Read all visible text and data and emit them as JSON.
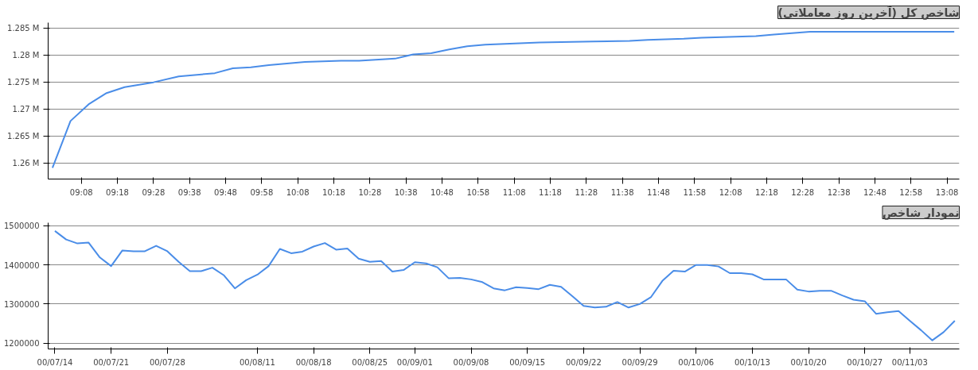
{
  "chart_data": [
    {
      "type": "line",
      "title": "شاخص کل (آخرین روز معاملاتی)",
      "x": [
        9.0,
        9.0833,
        9.1667,
        9.25,
        9.3333,
        9.4667,
        9.5833,
        9.75,
        9.8333,
        9.9167,
        10.0,
        10.1667,
        10.3333,
        10.4167,
        10.5833,
        10.6667,
        10.75,
        10.8333,
        10.9167,
        11.0,
        11.25,
        11.5,
        11.6667,
        11.75,
        11.9167,
        12.0,
        12.25,
        12.3333,
        12.5,
        13.1667
      ],
      "series": [
        {
          "color": "#4a8de8",
          "values": [
            1259100,
            1267800,
            1270900,
            1273000,
            1274100,
            1275000,
            1276100,
            1276700,
            1277600,
            1277800,
            1278200,
            1278800,
            1279000,
            1279000,
            1279400,
            1280200,
            1280400,
            1281100,
            1281700,
            1282000,
            1282400,
            1282600,
            1282700,
            1282900,
            1283100,
            1283300,
            1283600,
            1283900,
            1284400,
            1284400
          ]
        }
      ],
      "xlim": [
        8.98,
        13.19
      ],
      "xticks": [
        {
          "value": 9.1333,
          "label": "09:08"
        },
        {
          "value": 9.3,
          "label": "09:18"
        },
        {
          "value": 9.4667,
          "label": "09:28"
        },
        {
          "value": 9.6333,
          "label": "09:38"
        },
        {
          "value": 9.8,
          "label": "09:48"
        },
        {
          "value": 9.9667,
          "label": "09:58"
        },
        {
          "value": 10.1333,
          "label": "10:08"
        },
        {
          "value": 10.3,
          "label": "10:18"
        },
        {
          "value": 10.4667,
          "label": "10:28"
        },
        {
          "value": 10.6333,
          "label": "10:38"
        },
        {
          "value": 10.8,
          "label": "10:48"
        },
        {
          "value": 10.9667,
          "label": "10:58"
        },
        {
          "value": 11.1333,
          "label": "11:08"
        },
        {
          "value": 11.3,
          "label": "11:18"
        },
        {
          "value": 11.4667,
          "label": "11:28"
        },
        {
          "value": 11.6333,
          "label": "11:38"
        },
        {
          "value": 11.8,
          "label": "11:48"
        },
        {
          "value": 11.9667,
          "label": "11:58"
        },
        {
          "value": 12.1333,
          "label": "12:08"
        },
        {
          "value": 12.3,
          "label": "12:18"
        },
        {
          "value": 12.4667,
          "label": "12:28"
        },
        {
          "value": 12.6333,
          "label": "12:38"
        },
        {
          "value": 12.8,
          "label": "12:48"
        },
        {
          "value": 12.9667,
          "label": "12:58"
        },
        {
          "value": 13.1333,
          "label": "13:08"
        }
      ],
      "ylim": [
        1257000,
        1286100
      ],
      "yticks": [
        {
          "value": 1260000,
          "label": "1.26 M"
        },
        {
          "value": 1265000,
          "label": "1.265 M"
        },
        {
          "value": 1270000,
          "label": "1.27 M"
        },
        {
          "value": 1275000,
          "label": "1.275 M"
        },
        {
          "value": 1280000,
          "label": "1.28 M"
        },
        {
          "value": 1285000,
          "label": "1.285 M"
        }
      ],
      "grid": "y",
      "marker": "none",
      "line_style": "solid"
    },
    {
      "type": "line",
      "title": "نمودار شاخص",
      "categories": [
        "00/07/14",
        null,
        null,
        null,
        null,
        "00/07/21",
        null,
        null,
        null,
        null,
        "00/07/28",
        null,
        null,
        null,
        null,
        null,
        null,
        null,
        "00/08/11",
        null,
        null,
        null,
        null,
        "00/08/18",
        null,
        null,
        null,
        null,
        "00/08/25",
        null,
        null,
        null,
        "00/09/01",
        null,
        null,
        null,
        null,
        "00/09/08",
        null,
        null,
        null,
        null,
        "00/09/15",
        null,
        null,
        null,
        null,
        "00/09/22",
        null,
        null,
        null,
        null,
        "00/09/29",
        null,
        null,
        null,
        null,
        "00/10/06",
        null,
        null,
        null,
        null,
        "00/10/13",
        null,
        null,
        null,
        null,
        "00/10/20",
        null,
        null,
        null,
        null,
        "00/10/27",
        null,
        null,
        null,
        "00/11/03",
        null,
        null,
        null,
        null
      ],
      "series": [
        {
          "color": "#4a8de8",
          "values": [
            1487000,
            1465000,
            1455000,
            1457000,
            1419000,
            1397000,
            1437000,
            1435000,
            1435000,
            1449000,
            1435000,
            1408000,
            1384000,
            1384000,
            1393000,
            1374000,
            1340000,
            1361000,
            1375000,
            1397000,
            1441000,
            1430000,
            1434000,
            1447000,
            1456000,
            1439000,
            1442000,
            1416000,
            1408000,
            1410000,
            1383000,
            1387000,
            1407000,
            1404000,
            1394000,
            1366000,
            1367000,
            1363000,
            1356000,
            1340000,
            1335000,
            1343000,
            1341000,
            1338000,
            1349000,
            1344000,
            1320000,
            1295000,
            1291000,
            1293000,
            1305000,
            1291000,
            1300000,
            1318000,
            1359000,
            1385000,
            1383000,
            1400000,
            1400000,
            1396000,
            1379000,
            1379000,
            1376000,
            1363000,
            1363000,
            1363000,
            1337000,
            1332000,
            1334000,
            1334000,
            1322000,
            1311000,
            1307000,
            1275000,
            1279000,
            1282000,
            1257000,
            1233000,
            1207000,
            1228000,
            1257000
          ]
        }
      ],
      "ylim": [
        1185000,
        1508000
      ],
      "yticks": [
        1200000,
        1300000,
        1400000,
        1500000
      ],
      "grid": "y",
      "marker": "none",
      "line_style": "solid"
    }
  ]
}
